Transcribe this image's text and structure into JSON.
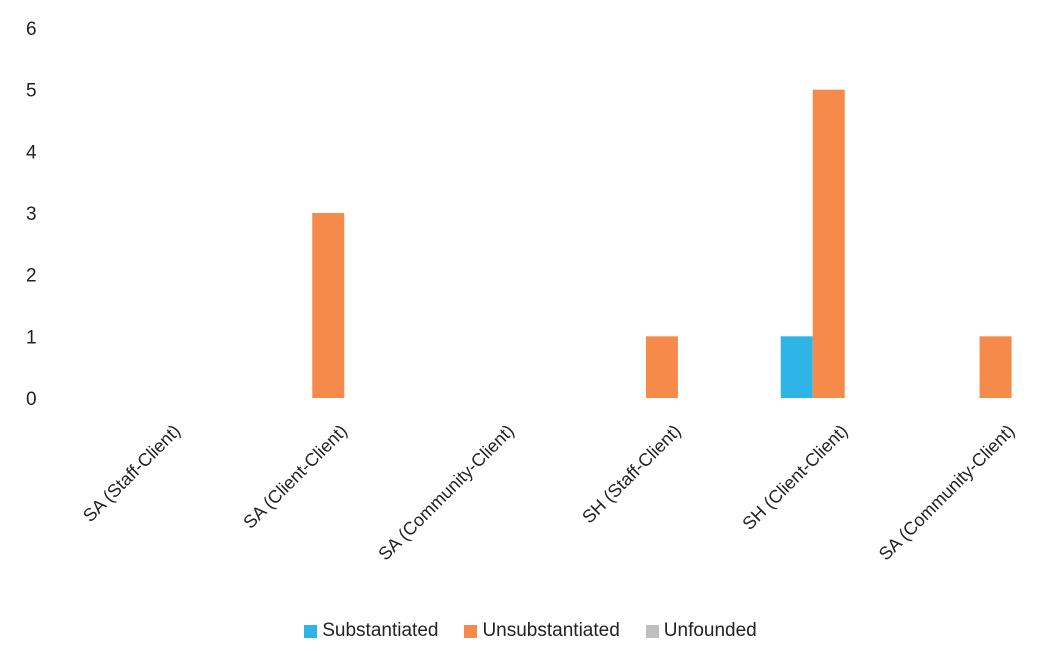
{
  "chart_data": {
    "type": "bar",
    "title": "",
    "xlabel": "",
    "ylabel": "",
    "ylim": [
      0,
      6
    ],
    "yticks": [
      0,
      1,
      2,
      3,
      4,
      5,
      6
    ],
    "grid": false,
    "legend_position": "bottom",
    "categories": [
      "SA (Staff-Client)",
      "SA (Client-Client)",
      "SA (Community-Client)",
      "SH (Staff-Client)",
      "SH (Client-Client)",
      "SA (Community-Client)"
    ],
    "series": [
      {
        "name": "Substantiated",
        "color": "#2FB4E8",
        "values": [
          0,
          0,
          0,
          0,
          1,
          0
        ]
      },
      {
        "name": "Unsubstantiated",
        "color": "#F58A4B",
        "values": [
          0,
          3,
          0,
          1,
          5,
          1
        ]
      },
      {
        "name": "Unfounded",
        "color": "#BFBFBF",
        "values": [
          0,
          0,
          0,
          0,
          0,
          0
        ]
      }
    ]
  }
}
